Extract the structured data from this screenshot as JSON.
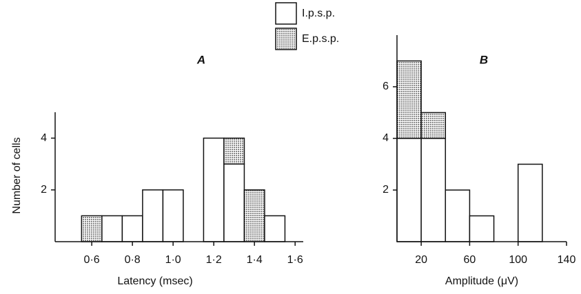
{
  "chart_data": [
    {
      "type": "histogram",
      "panel": "A",
      "xlabel": "Latency (msec)",
      "ylabel": "Number of cells",
      "bins": [
        0.55,
        0.65,
        0.75,
        0.85,
        0.95,
        1.05,
        1.15,
        1.25,
        1.35,
        1.45,
        1.55
      ],
      "series": [
        {
          "name": "I.p.s.p.",
          "color": "#ffffff",
          "values": [
            0,
            1,
            1,
            2,
            2,
            0,
            4,
            3,
            0,
            1
          ]
        },
        {
          "name": "E.p.s.p.",
          "color": "#b0b0b0",
          "pattern": "stipple",
          "values": [
            1,
            0,
            0,
            0,
            0,
            0,
            0,
            1,
            2,
            0
          ]
        }
      ],
      "xlim": [
        0.42,
        1.64
      ],
      "xticks": [
        {
          "value": 0.6,
          "label": "0·6"
        },
        {
          "value": 0.8,
          "label": "0·8"
        },
        {
          "value": 1.0,
          "label": "1·0"
        },
        {
          "value": 1.2,
          "label": "1·2"
        },
        {
          "value": 1.4,
          "label": "1·4"
        },
        {
          "value": 1.6,
          "label": "1·6"
        }
      ],
      "ylim": [
        0,
        5
      ],
      "yticks": [
        2,
        4
      ]
    },
    {
      "type": "histogram",
      "panel": "B",
      "xlabel": "Amplitude (μV)",
      "bins": [
        0,
        20,
        40,
        60,
        80,
        100,
        120
      ],
      "series": [
        {
          "color": "#ffffff",
          "values": [
            4,
            4,
            2,
            1,
            0,
            3
          ]
        },
        {
          "color": "#b0b0b0",
          "pattern": "stipple",
          "values": [
            3,
            1,
            0,
            0,
            0,
            0
          ]
        }
      ],
      "xlim": [
        0,
        140
      ],
      "xticks": [
        20,
        60,
        100,
        140
      ],
      "ylim": [
        0,
        8
      ],
      "yticks": [
        2,
        4,
        6
      ]
    }
  ]
}
